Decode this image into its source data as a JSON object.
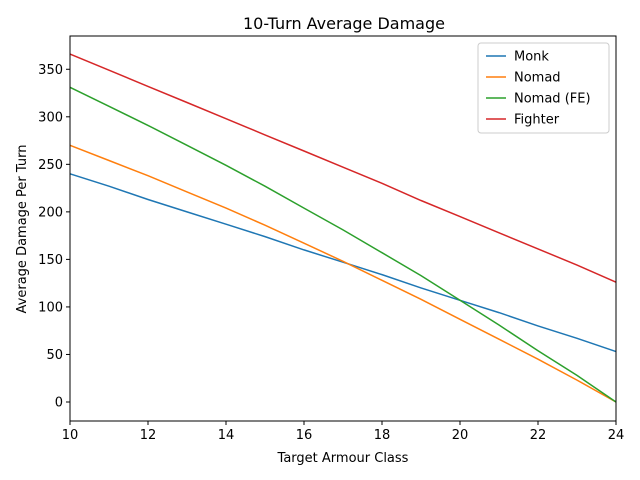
{
  "chart_data": {
    "type": "line",
    "title": "10-Turn Average Damage",
    "xlabel": "Target Armour Class",
    "ylabel": "Average Damage Per Turn",
    "xlim": [
      10,
      24
    ],
    "ylim": [
      -20,
      385
    ],
    "xticks": [
      10,
      12,
      14,
      16,
      18,
      20,
      22,
      24
    ],
    "yticks": [
      0,
      50,
      100,
      150,
      200,
      250,
      300,
      350
    ],
    "grid": false,
    "legend_position": "top-right",
    "series": [
      {
        "name": "Monk",
        "color": "#1f77b4",
        "x": [
          10,
          11,
          12,
          13,
          14,
          15,
          16,
          17,
          18,
          19,
          20,
          21,
          22,
          23,
          24
        ],
        "y": [
          240,
          227,
          213,
          200,
          187,
          174,
          160,
          147,
          134,
          120,
          107,
          94,
          80,
          67,
          53
        ]
      },
      {
        "name": "Nomad",
        "color": "#ff7f0e",
        "x": [
          10,
          11,
          12,
          13,
          14,
          15,
          16,
          17,
          18,
          19,
          20,
          21,
          22,
          23,
          24
        ],
        "y": [
          270,
          254,
          238,
          221,
          204,
          186,
          167,
          148,
          128,
          108,
          87,
          66,
          45,
          23,
          0
        ]
      },
      {
        "name": "Nomad (FE)",
        "color": "#2ca02c",
        "x": [
          10,
          11,
          12,
          13,
          14,
          15,
          16,
          17,
          18,
          19,
          20,
          21,
          22,
          23,
          24
        ],
        "y": [
          331,
          311,
          291,
          270,
          249,
          227,
          204,
          181,
          157,
          133,
          107,
          81,
          54,
          28,
          0
        ]
      },
      {
        "name": "Fighter",
        "color": "#d62728",
        "x": [
          10,
          11,
          12,
          13,
          14,
          15,
          16,
          17,
          18,
          19,
          20,
          21,
          22,
          23,
          24
        ],
        "y": [
          366,
          349,
          332,
          315,
          298,
          281,
          264,
          247,
          230,
          212,
          195,
          178,
          161,
          144,
          126
        ]
      }
    ]
  }
}
